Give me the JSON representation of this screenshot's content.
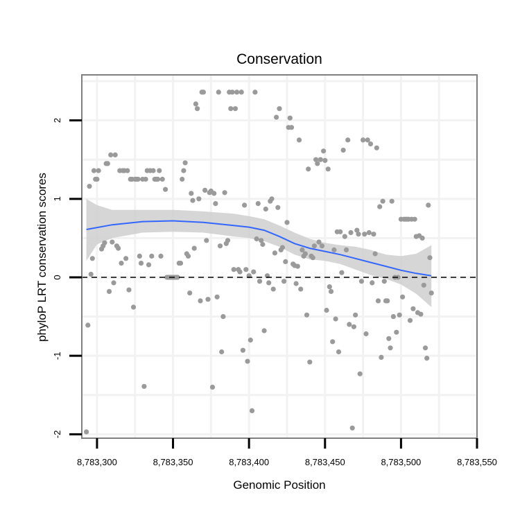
{
  "chart_data": {
    "type": "scatter",
    "title": "Conservation",
    "xlabel": "Genomic Position",
    "ylabel": "phyloP LRT conservation scores",
    "xlim": [
      8783290,
      8783550
    ],
    "ylim": [
      -2.05,
      2.58
    ],
    "x_ticks": [
      8783300,
      8783350,
      8783400,
      8783450,
      8783500,
      8783550
    ],
    "x_tick_labels": [
      "8,783,300",
      "8,783,350",
      "8,783,400",
      "8,783,450",
      "8,783,500",
      "8,783,550"
    ],
    "y_ticks": [
      -2,
      -1,
      0,
      1,
      2
    ],
    "y_tick_labels": [
      "-2",
      "-1",
      "0",
      "1",
      "2"
    ],
    "reference_line": {
      "y": 0,
      "style": "dashed"
    },
    "colors": {
      "points": "#9a9a9a",
      "smooth": "#3366ff",
      "ribbon": "#cccccc",
      "frame": "#7f7f7f",
      "grid": "#f2f2f2"
    },
    "points": [
      [
        8783293,
        -1.97
      ],
      [
        8783294,
        -0.61
      ],
      [
        8783295,
        1.16
      ],
      [
        8783296,
        0.04
      ],
      [
        8783297,
        0.24
      ],
      [
        8783298,
        1.36
      ],
      [
        8783299,
        1.25
      ],
      [
        8783300,
        1.25
      ],
      [
        8783301,
        1.36
      ],
      [
        8783303,
        0.36
      ],
      [
        8783304,
        0.4
      ],
      [
        8783305,
        0.44
      ],
      [
        8783306,
        1.45
      ],
      [
        8783307,
        1.45
      ],
      [
        8783308,
        -0.18
      ],
      [
        8783309,
        1.56
      ],
      [
        8783310,
        0.45
      ],
      [
        8783311,
        -0.07
      ],
      [
        8783312,
        1.56
      ],
      [
        8783313,
        0.4
      ],
      [
        8783314,
        0.37
      ],
      [
        8783315,
        1.36
      ],
      [
        8783316,
        0.18
      ],
      [
        8783317,
        1.36
      ],
      [
        8783318,
        1.36
      ],
      [
        8783319,
        0.24
      ],
      [
        8783320,
        1.36
      ],
      [
        8783321,
        -0.16
      ],
      [
        8783322,
        1.25
      ],
      [
        8783323,
        1.25
      ],
      [
        8783324,
        -0.38
      ],
      [
        8783325,
        1.25
      ],
      [
        8783326,
        1.25
      ],
      [
        8783327,
        1.25
      ],
      [
        8783328,
        0.27
      ],
      [
        8783329,
        0.18
      ],
      [
        8783330,
        1.25
      ],
      [
        8783331,
        -1.39
      ],
      [
        8783332,
        1.25
      ],
      [
        8783333,
        1.36
      ],
      [
        8783334,
        0.16
      ],
      [
        8783335,
        1.36
      ],
      [
        8783336,
        0.27
      ],
      [
        8783337,
        1.36
      ],
      [
        8783338,
        1.25
      ],
      [
        8783339,
        1.25
      ],
      [
        8783340,
        1.25
      ],
      [
        8783341,
        1.36
      ],
      [
        8783342,
        0.27
      ],
      [
        8783343,
        1.25
      ],
      [
        8783345,
        1.12
      ],
      [
        8783346,
        0.0
      ],
      [
        8783347,
        0.0
      ],
      [
        8783348,
        0.0
      ],
      [
        8783349,
        0.0
      ],
      [
        8783350,
        0.0
      ],
      [
        8783351,
        0.0
      ],
      [
        8783352,
        0.0
      ],
      [
        8783353,
        0.0
      ],
      [
        8783354,
        0.18
      ],
      [
        8783355,
        0.18
      ],
      [
        8783356,
        1.25
      ],
      [
        8783357,
        1.36
      ],
      [
        8783358,
        1.46
      ],
      [
        8783359,
        0.3
      ],
      [
        8783360,
        0.27
      ],
      [
        8783361,
        -0.2
      ],
      [
        8783362,
        1.07
      ],
      [
        8783363,
        0.98
      ],
      [
        8783364,
        0.37
      ],
      [
        8783365,
        2.21
      ],
      [
        8783366,
        2.15
      ],
      [
        8783367,
        1.0
      ],
      [
        8783368,
        -0.3
      ],
      [
        8783369,
        2.36
      ],
      [
        8783370,
        2.36
      ],
      [
        8783371,
        1.11
      ],
      [
        8783372,
        0.47
      ],
      [
        8783373,
        -0.28
      ],
      [
        8783374,
        1.08
      ],
      [
        8783375,
        1.1
      ],
      [
        8783376,
        -1.4
      ],
      [
        8783377,
        1.07
      ],
      [
        8783378,
        0.94
      ],
      [
        8783379,
        -0.25
      ],
      [
        8783380,
        2.36
      ],
      [
        8783381,
        0.4
      ],
      [
        8783382,
        -0.95
      ],
      [
        8783383,
        -0.5
      ],
      [
        8783384,
        1.08
      ],
      [
        8783385,
        0.43
      ],
      [
        8783386,
        0.47
      ],
      [
        8783387,
        2.36
      ],
      [
        8783388,
        2.15
      ],
      [
        8783389,
        2.36
      ],
      [
        8783390,
        0.1
      ],
      [
        8783391,
        2.15
      ],
      [
        8783392,
        2.36
      ],
      [
        8783393,
        0.1
      ],
      [
        8783394,
        0.07
      ],
      [
        8783395,
        2.36
      ],
      [
        8783396,
        -0.93
      ],
      [
        8783397,
        0.92
      ],
      [
        8783398,
        0.1
      ],
      [
        8783399,
        -1.07
      ],
      [
        8783400,
        0.02
      ],
      [
        8783401,
        -0.8
      ],
      [
        8783402,
        -1.7
      ],
      [
        8783403,
        0.07
      ],
      [
        8783404,
        2.36
      ],
      [
        8783405,
        0.49
      ],
      [
        8783406,
        0.94
      ],
      [
        8783407,
        -0.05
      ],
      [
        8783408,
        0.47
      ],
      [
        8783409,
        0.42
      ],
      [
        8783410,
        -0.68
      ],
      [
        8783411,
        0.87
      ],
      [
        8783412,
        0.02
      ],
      [
        8783413,
        -0.07
      ],
      [
        8783414,
        0.97
      ],
      [
        8783415,
        1.0
      ],
      [
        8783416,
        -0.15
      ],
      [
        8783417,
        0.31
      ],
      [
        8783418,
        2.04
      ],
      [
        8783419,
        0.89
      ],
      [
        8783420,
        2.15
      ],
      [
        8783421,
        0.35
      ],
      [
        8783422,
        0.38
      ],
      [
        8783423,
        -0.05
      ],
      [
        8783424,
        0.2
      ],
      [
        8783425,
        0.7
      ],
      [
        8783426,
        1.91
      ],
      [
        8783427,
        2.03
      ],
      [
        8783428,
        1.91
      ],
      [
        8783429,
        0.17
      ],
      [
        8783430,
        0.15
      ],
      [
        8783431,
        -0.08
      ],
      [
        8783432,
        0.14
      ],
      [
        8783433,
        1.75
      ],
      [
        8783434,
        -0.15
      ],
      [
        8783435,
        0.35
      ],
      [
        8783436,
        0.27
      ],
      [
        8783437,
        0.3
      ],
      [
        8783438,
        -0.48
      ],
      [
        8783439,
        1.38
      ],
      [
        8783440,
        -1.08
      ],
      [
        8783441,
        0.27
      ],
      [
        8783442,
        0.25
      ],
      [
        8783443,
        0.4
      ],
      [
        8783444,
        1.5
      ],
      [
        8783445,
        1.45
      ],
      [
        8783446,
        0.45
      ],
      [
        8783447,
        1.5
      ],
      [
        8783448,
        0.4
      ],
      [
        8783449,
        1.61
      ],
      [
        8783450,
        1.49
      ],
      [
        8783451,
        -0.42
      ],
      [
        8783452,
        1.38
      ],
      [
        8783453,
        -0.12
      ],
      [
        8783454,
        -0.18
      ],
      [
        8783455,
        -0.82
      ],
      [
        8783456,
        0.35
      ],
      [
        8783457,
        -0.53
      ],
      [
        8783458,
        0.58
      ],
      [
        8783459,
        -0.95
      ],
      [
        8783460,
        0.58
      ],
      [
        8783461,
        0.06
      ],
      [
        8783462,
        1.62
      ],
      [
        8783463,
        0.52
      ],
      [
        8783464,
        0.35
      ],
      [
        8783465,
        1.75
      ],
      [
        8783466,
        -0.6
      ],
      [
        8783467,
        0.57
      ],
      [
        8783468,
        -1.92
      ],
      [
        8783469,
        -0.63
      ],
      [
        8783470,
        -0.48
      ],
      [
        8783471,
        0.6
      ],
      [
        8783472,
        0.55
      ],
      [
        8783473,
        -1.23
      ],
      [
        8783474,
        -0.05
      ],
      [
        8783475,
        1.75
      ],
      [
        8783476,
        0.55
      ],
      [
        8783477,
        -0.72
      ],
      [
        8783478,
        1.75
      ],
      [
        8783479,
        0.57
      ],
      [
        8783480,
        1.7
      ],
      [
        8783481,
        -0.07
      ],
      [
        8783482,
        0.55
      ],
      [
        8783483,
        0.3
      ],
      [
        8783484,
        1.65
      ],
      [
        8783485,
        -0.3
      ],
      [
        8783486,
        0.9
      ],
      [
        8783487,
        -1.02
      ],
      [
        8783488,
        0.97
      ],
      [
        8783489,
        -0.05
      ],
      [
        8783490,
        -0.3
      ],
      [
        8783491,
        -0.3
      ],
      [
        8783492,
        -0.78
      ],
      [
        8783493,
        -0.9
      ],
      [
        8783494,
        0.97
      ],
      [
        8783495,
        -0.5
      ],
      [
        8783496,
        0.0
      ],
      [
        8783497,
        -0.7
      ],
      [
        8783498,
        0.0
      ],
      [
        8783499,
        -0.48
      ],
      [
        8783500,
        0.74
      ],
      [
        8783501,
        -0.25
      ],
      [
        8783502,
        0.74
      ],
      [
        8783503,
        0.74
      ],
      [
        8783504,
        0.74
      ],
      [
        8783505,
        0.74
      ],
      [
        8783506,
        -0.55
      ],
      [
        8783507,
        0.74
      ],
      [
        8783508,
        -0.4
      ],
      [
        8783509,
        0.74
      ],
      [
        8783510,
        0.52
      ],
      [
        8783511,
        -0.45
      ],
      [
        8783512,
        0.53
      ],
      [
        8783513,
        -0.47
      ],
      [
        8783514,
        0.5
      ],
      [
        8783515,
        -0.1
      ],
      [
        8783516,
        -0.9
      ],
      [
        8783517,
        -1.03
      ],
      [
        8783518,
        0.92
      ],
      [
        8783519,
        0.25
      ],
      [
        8783520,
        -0.2
      ]
    ],
    "smooth_line": [
      [
        8783293,
        0.61
      ],
      [
        8783310,
        0.67
      ],
      [
        8783330,
        0.71
      ],
      [
        8783350,
        0.72
      ],
      [
        8783370,
        0.7
      ],
      [
        8783390,
        0.66
      ],
      [
        8783400,
        0.64
      ],
      [
        8783410,
        0.6
      ],
      [
        8783420,
        0.52
      ],
      [
        8783430,
        0.43
      ],
      [
        8783440,
        0.37
      ],
      [
        8783450,
        0.33
      ],
      [
        8783460,
        0.29
      ],
      [
        8783470,
        0.24
      ],
      [
        8783480,
        0.19
      ],
      [
        8783490,
        0.14
      ],
      [
        8783500,
        0.09
      ],
      [
        8783510,
        0.05
      ],
      [
        8783520,
        0.02
      ]
    ],
    "ribbon": [
      [
        8783293,
        1.0,
        0.21
      ],
      [
        8783300,
        0.92,
        0.42
      ],
      [
        8783310,
        0.86,
        0.5
      ],
      [
        8783330,
        0.86,
        0.57
      ],
      [
        8783350,
        0.86,
        0.58
      ],
      [
        8783370,
        0.84,
        0.57
      ],
      [
        8783390,
        0.81,
        0.52
      ],
      [
        8783400,
        0.78,
        0.5
      ],
      [
        8783410,
        0.74,
        0.46
      ],
      [
        8783420,
        0.66,
        0.39
      ],
      [
        8783430,
        0.57,
        0.29
      ],
      [
        8783440,
        0.49,
        0.23
      ],
      [
        8783450,
        0.44,
        0.21
      ],
      [
        8783460,
        0.41,
        0.17
      ],
      [
        8783470,
        0.39,
        0.1
      ],
      [
        8783480,
        0.35,
        0.03
      ],
      [
        8783490,
        0.29,
        -0.02
      ],
      [
        8783500,
        0.27,
        -0.09
      ],
      [
        8783510,
        0.3,
        -0.21
      ],
      [
        8783520,
        0.41,
        -0.38
      ]
    ]
  }
}
